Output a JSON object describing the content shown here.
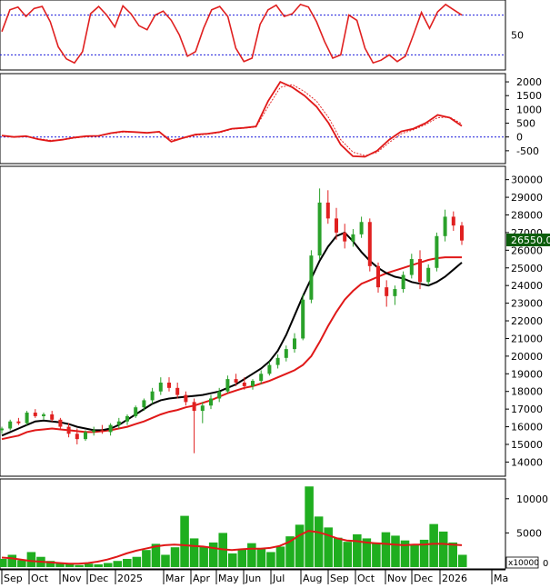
{
  "colors": {
    "background": "#ffffff",
    "up_candle": "#2aa12a",
    "down_candle": "#e02020",
    "volume": "#1fae1f",
    "ma_red": "#e01818",
    "ma_black": "#000000",
    "reference_line": "#1a1adc",
    "price_tag_bg": "#0d5e0d",
    "price_tag_text": "#ffffff",
    "panel_border": "#000000"
  },
  "chart_data": [
    {
      "type": "line",
      "panel": "stochastic",
      "y_ticks": [
        "50"
      ],
      "reference_lines": [
        80,
        20
      ],
      "ylim": [
        0,
        100
      ],
      "series": [
        {
          "values": [
            55,
            88,
            92,
            78,
            90,
            93,
            70,
            32,
            14,
            8,
            25,
            82,
            93,
            80,
            62,
            94,
            82,
            64,
            58,
            80,
            86,
            72,
            50,
            18,
            25,
            60,
            88,
            93,
            78,
            30,
            10,
            15,
            66,
            88,
            95,
            78,
            82,
            96,
            92,
            70,
            40,
            15,
            20,
            80,
            72,
            30,
            8,
            12,
            20,
            10,
            18,
            50,
            84,
            60,
            85,
            96,
            88,
            80
          ]
        }
      ]
    },
    {
      "type": "line",
      "panel": "macd",
      "y_ticks": [
        "2000",
        "1500",
        "1000",
        "500",
        "0",
        "-500"
      ],
      "ylim": [
        -900,
        2200
      ],
      "reference_lines": [
        0
      ],
      "series": [
        {
          "values": [
            50,
            0,
            30,
            -80,
            -150,
            -100,
            -20,
            30,
            40,
            140,
            200,
            180,
            150,
            190,
            -170,
            -30,
            90,
            120,
            180,
            300,
            330,
            380,
            1300,
            2000,
            1800,
            1500,
            1100,
            500,
            -280,
            -700,
            -720,
            -500,
            -100,
            200,
            300,
            500,
            800,
            700,
            400
          ]
        },
        {
          "values": [
            40,
            10,
            20,
            -60,
            -120,
            -110,
            -40,
            10,
            30,
            120,
            180,
            170,
            160,
            170,
            -100,
            -50,
            60,
            100,
            160,
            280,
            320,
            360,
            1100,
            1800,
            1900,
            1650,
            1300,
            700,
            -100,
            -550,
            -680,
            -560,
            -200,
            120,
            260,
            450,
            700,
            720,
            480
          ]
        }
      ]
    },
    {
      "type": "candlestick",
      "panel": "price",
      "y_ticks": [
        "30000",
        "29000",
        "28000",
        "27000",
        "26000",
        "25000",
        "24000",
        "23000",
        "22000",
        "21000",
        "20000",
        "19000",
        "18000",
        "17000",
        "16000",
        "15000",
        "14000"
      ],
      "ylim": [
        13300,
        30600
      ],
      "last_price_label": "26550.00",
      "ohlc": [
        [
          15800,
          16000,
          15600,
          15900
        ],
        [
          15900,
          16400,
          15800,
          16300
        ],
        [
          16300,
          16500,
          16100,
          16200
        ],
        [
          16200,
          16900,
          16100,
          16800
        ],
        [
          16800,
          17000,
          16500,
          16600
        ],
        [
          16600,
          16800,
          16400,
          16700
        ],
        [
          16700,
          16900,
          16300,
          16400
        ],
        [
          16400,
          16500,
          15900,
          16000
        ],
        [
          16000,
          16200,
          15400,
          15600
        ],
        [
          15600,
          15900,
          15000,
          15300
        ],
        [
          15300,
          15800,
          15200,
          15700
        ],
        [
          15700,
          16000,
          15500,
          15800
        ],
        [
          15800,
          16100,
          15600,
          15700
        ],
        [
          15700,
          16200,
          15500,
          16100
        ],
        [
          16100,
          16500,
          15900,
          16300
        ],
        [
          16300,
          16700,
          16100,
          16600
        ],
        [
          16600,
          17200,
          16500,
          17100
        ],
        [
          17100,
          17600,
          16900,
          17500
        ],
        [
          17500,
          18200,
          17300,
          18000
        ],
        [
          18000,
          18800,
          17800,
          18500
        ],
        [
          18500,
          18800,
          18000,
          18200
        ],
        [
          18200,
          18500,
          17600,
          17800
        ],
        [
          17800,
          18000,
          17200,
          17400
        ],
        [
          17400,
          17600,
          14500,
          16900
        ],
        [
          16900,
          17400,
          16200,
          17200
        ],
        [
          17200,
          17800,
          17000,
          17600
        ],
        [
          17600,
          18200,
          17400,
          18000
        ],
        [
          18000,
          18900,
          17900,
          18700
        ],
        [
          18700,
          19000,
          18300,
          18500
        ],
        [
          18500,
          18800,
          18100,
          18300
        ],
        [
          18300,
          18700,
          18100,
          18600
        ],
        [
          18600,
          19200,
          18400,
          19000
        ],
        [
          19000,
          19700,
          18900,
          19500
        ],
        [
          19500,
          20100,
          19300,
          19900
        ],
        [
          19900,
          20600,
          19700,
          20400
        ],
        [
          20400,
          21300,
          20200,
          21000
        ],
        [
          21000,
          23500,
          20900,
          23200
        ],
        [
          23200,
          26000,
          23000,
          25700
        ],
        [
          25700,
          29500,
          25500,
          28700
        ],
        [
          28700,
          29400,
          27500,
          27800
        ],
        [
          27800,
          28400,
          26600,
          27000
        ],
        [
          27000,
          27500,
          26100,
          26500
        ],
        [
          26500,
          27200,
          26200,
          26900
        ],
        [
          26900,
          27900,
          26700,
          27600
        ],
        [
          27600,
          27800,
          24800,
          25100
        ],
        [
          25100,
          25300,
          23600,
          23900
        ],
        [
          23900,
          24300,
          22800,
          23400
        ],
        [
          23400,
          24000,
          22900,
          23800
        ],
        [
          23800,
          24800,
          23600,
          24600
        ],
        [
          24600,
          25800,
          24400,
          25500
        ],
        [
          25500,
          26000,
          23800,
          24200
        ],
        [
          24200,
          25200,
          24000,
          25000
        ],
        [
          25000,
          27000,
          24800,
          26800
        ],
        [
          26800,
          28300,
          26500,
          27900
        ],
        [
          27900,
          28200,
          27100,
          27400
        ],
        [
          27400,
          27600,
          26300,
          26550
        ]
      ],
      "ma_red": [
        15300,
        15400,
        15500,
        15700,
        15800,
        15850,
        15900,
        15850,
        15800,
        15750,
        15700,
        15700,
        15750,
        15800,
        15900,
        16000,
        16150,
        16300,
        16500,
        16700,
        16850,
        16950,
        17100,
        17200,
        17350,
        17500,
        17700,
        17900,
        18050,
        18200,
        18300,
        18450,
        18600,
        18800,
        19000,
        19200,
        19500,
        20000,
        20800,
        21700,
        22500,
        23200,
        23700,
        24100,
        24300,
        24500,
        24700,
        24850,
        25000,
        25150,
        25300,
        25450,
        25550,
        25600,
        25600,
        25600
      ],
      "ma_black": [
        15500,
        15700,
        15900,
        16100,
        16300,
        16350,
        16300,
        16250,
        16150,
        16000,
        15900,
        15800,
        15800,
        15900,
        16100,
        16400,
        16700,
        17000,
        17300,
        17500,
        17600,
        17650,
        17700,
        17750,
        17800,
        17900,
        18000,
        18200,
        18400,
        18700,
        19000,
        19300,
        19700,
        20300,
        21200,
        22300,
        23400,
        24400,
        25400,
        26200,
        26800,
        27000,
        26500,
        25900,
        25400,
        25000,
        24700,
        24500,
        24400,
        24200,
        24100,
        24000,
        24200,
        24500,
        24900,
        25300
      ]
    },
    {
      "type": "bar",
      "panel": "volume",
      "y_ticks": [
        "10000",
        "5000"
      ],
      "unit_label": "x10000",
      "unit_suffix": "0",
      "ylim": [
        0,
        12500
      ],
      "values": [
        1200,
        1800,
        1000,
        2200,
        1500,
        900,
        600,
        400,
        300,
        500,
        400,
        600,
        900,
        1200,
        1500,
        2500,
        3400,
        1800,
        2900,
        7500,
        4200,
        3000,
        3600,
        5000,
        2000,
        2600,
        3500,
        2800,
        2200,
        3000,
        4500,
        6200,
        11800,
        7400,
        5800,
        4300,
        3700,
        4800,
        4200,
        3600,
        5100,
        4600,
        3900,
        3300,
        4000,
        6300,
        5200,
        3600,
        1800
      ],
      "ma": [
        1400,
        1300,
        1100,
        900,
        800,
        700,
        600,
        500,
        500,
        600,
        800,
        1100,
        1500,
        2000,
        2400,
        2700,
        3000,
        3200,
        3300,
        3200,
        3100,
        3000,
        2800,
        2600,
        2500,
        2600,
        2700,
        2700,
        2800,
        3100,
        3700,
        4600,
        5300,
        5100,
        4700,
        4200,
        3900,
        3800,
        3600,
        3500,
        3400,
        3300,
        3200,
        3300,
        3300,
        3400,
        3400,
        3300,
        3200
      ]
    }
  ],
  "x_axis": {
    "months": [
      "Sep",
      "Oct",
      "Nov",
      "Dec",
      "2025",
      "Mar",
      "Apr",
      "May",
      "Jun",
      "Jul",
      "Aug",
      "Sep",
      "Oct",
      "Nov",
      "Dec",
      "2026",
      "Ma"
    ]
  }
}
